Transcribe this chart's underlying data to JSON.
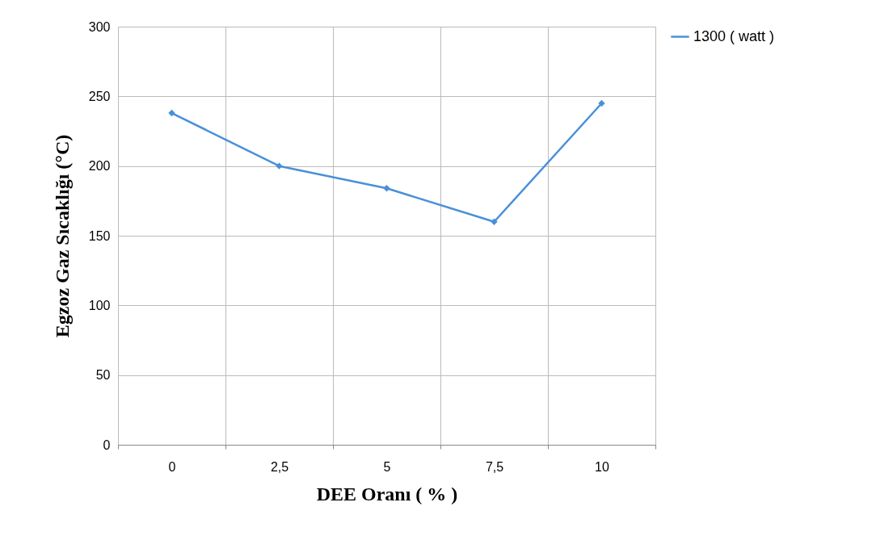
{
  "chart_data": {
    "type": "line",
    "xlabel": "DEE Oranı ( % )",
    "ylabel": "Egzoz Gaz Sıcaklığı (°C)",
    "categories": [
      "0",
      "2,5",
      "5",
      "7,5",
      "10"
    ],
    "series": [
      {
        "name": "1300 ( watt )",
        "color": "#4a90d9",
        "values": [
          238,
          200,
          184,
          160,
          245
        ]
      }
    ],
    "ylim": [
      0,
      300
    ],
    "yticks": [
      0,
      50,
      100,
      150,
      200,
      250,
      300
    ],
    "grid": true,
    "legend": "right",
    "marker": "diamond",
    "line_style": "solid"
  }
}
